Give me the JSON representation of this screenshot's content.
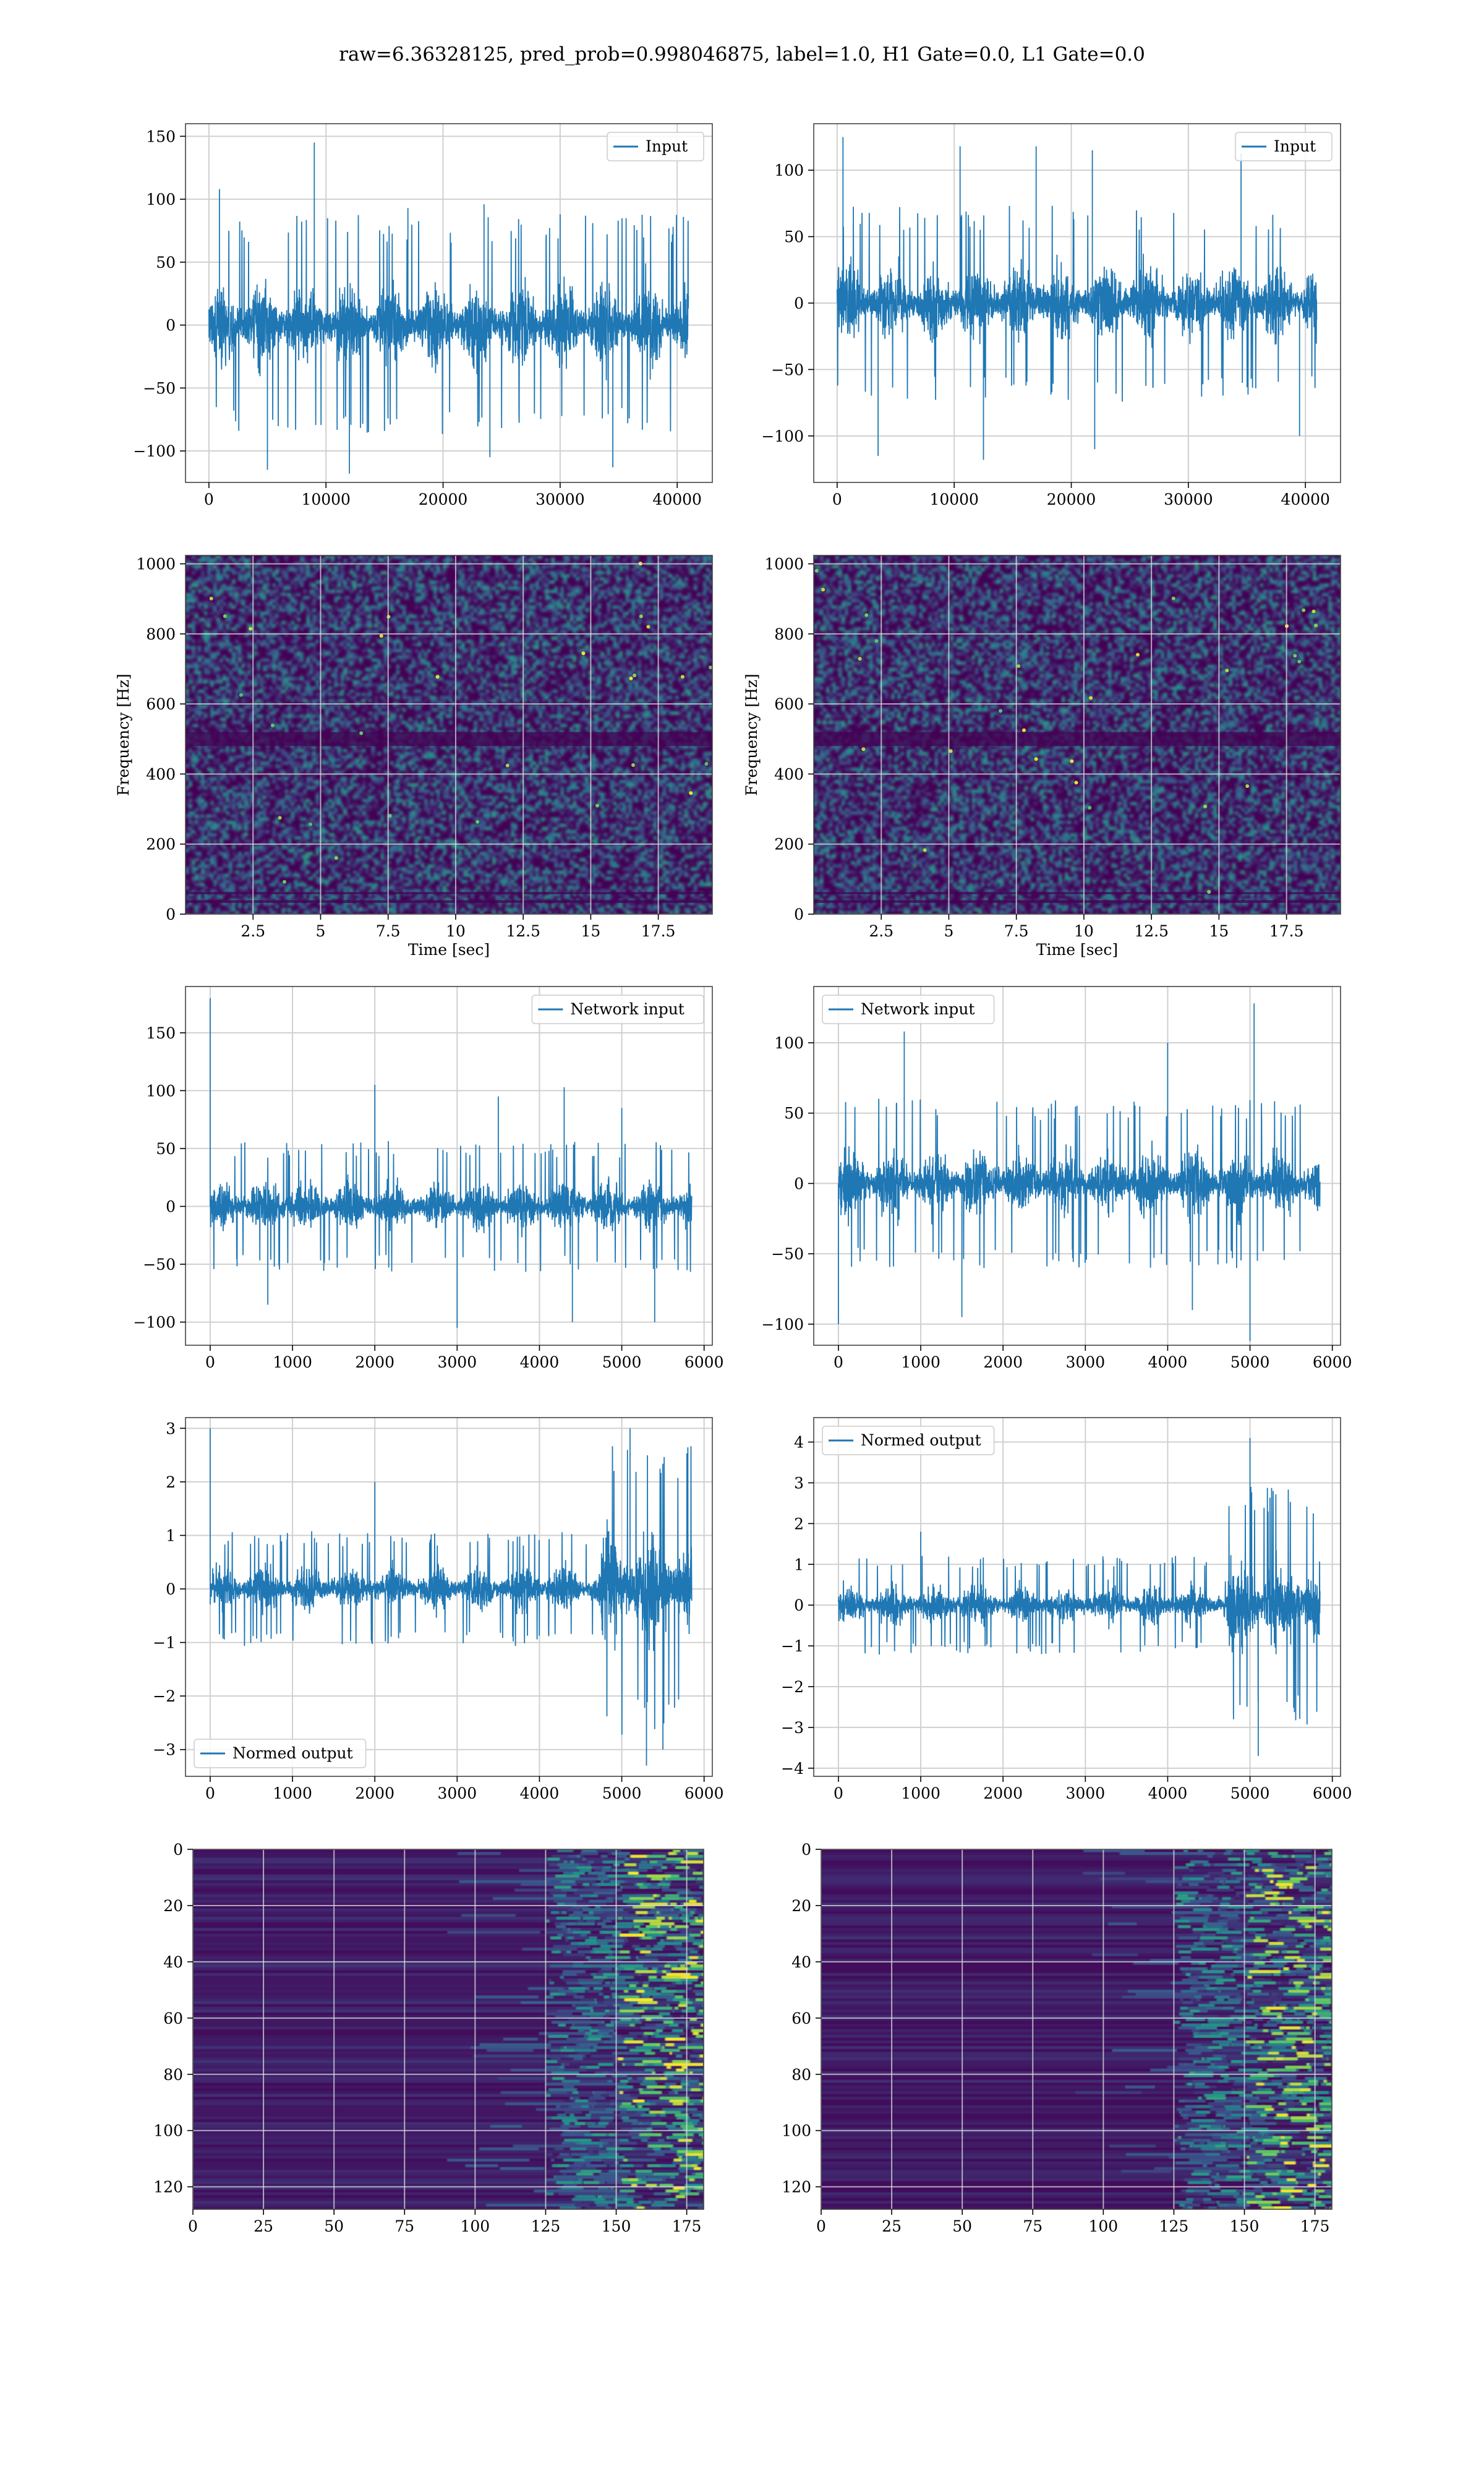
{
  "suptitle": "raw=6.36328125, pred_prob=0.998046875, label=1.0, H1 Gate=0.0, L1 Gate=0.0",
  "colors": {
    "line": "#1f77b4",
    "grid": "#d0d0d0",
    "axis": "#000000",
    "viridis_dark": "#440154",
    "viridis_mid": "#21918c",
    "viridis_bright": "#fde725"
  },
  "chart_data": [
    {
      "id": "row1-left",
      "type": "line",
      "legend": {
        "entries": [
          "Input"
        ],
        "loc": "upper right"
      },
      "grid": true,
      "xlim": [
        -2000,
        43000
      ],
      "ylim": [
        -125,
        160
      ],
      "xticks": [
        0,
        10000,
        20000,
        30000,
        40000
      ],
      "yticks": [
        -100,
        -50,
        0,
        50,
        100,
        150
      ],
      "series": [
        {
          "name": "Input",
          "x_range": [
            0,
            40960
          ],
          "envelope": [
            -65,
            65
          ],
          "peaks": [
            [
              900,
              108
            ],
            [
              9000,
              145
            ],
            [
              17000,
              93
            ],
            [
              23500,
              96
            ],
            [
              30000,
              88
            ],
            [
              5000,
              -115
            ],
            [
              12000,
              -118
            ],
            [
              24000,
              -105
            ],
            [
              34500,
              -113
            ]
          ]
        }
      ]
    },
    {
      "id": "row1-right",
      "type": "line",
      "legend": {
        "entries": [
          "Input"
        ],
        "loc": "upper right"
      },
      "grid": true,
      "xlim": [
        -2000,
        43000
      ],
      "ylim": [
        -135,
        135
      ],
      "xticks": [
        0,
        10000,
        20000,
        30000,
        40000
      ],
      "yticks": [
        -100,
        -50,
        0,
        50,
        100
      ],
      "series": [
        {
          "name": "Input",
          "x_range": [
            0,
            40960
          ],
          "envelope": [
            -55,
            55
          ],
          "peaks": [
            [
              500,
              125
            ],
            [
              10500,
              118
            ],
            [
              17000,
              118
            ],
            [
              21800,
              115
            ],
            [
              34500,
              113
            ],
            [
              3500,
              -115
            ],
            [
              12500,
              -118
            ],
            [
              22000,
              -110
            ],
            [
              39500,
              -100
            ]
          ]
        }
      ]
    },
    {
      "id": "row2-left",
      "type": "heatmap",
      "grid": true,
      "xlim": [
        0,
        19.5
      ],
      "ylim": [
        0,
        1024
      ],
      "xticks": [
        2.5,
        5.0,
        7.5,
        10.0,
        12.5,
        15.0,
        17.5
      ],
      "yticks": [
        0,
        200,
        400,
        600,
        800,
        1000
      ],
      "xlabel": "Time [sec]",
      "ylabel": "Frequency [Hz]",
      "colormap": "viridis"
    },
    {
      "id": "row2-right",
      "type": "heatmap",
      "grid": true,
      "xlim": [
        0,
        19.5
      ],
      "ylim": [
        0,
        1024
      ],
      "xticks": [
        2.5,
        5.0,
        7.5,
        10.0,
        12.5,
        15.0,
        17.5
      ],
      "yticks": [
        0,
        200,
        400,
        600,
        800,
        1000
      ],
      "xlabel": "Time [sec]",
      "ylabel": "Frequency [Hz]",
      "colormap": "viridis"
    },
    {
      "id": "row3-left",
      "type": "line",
      "legend": {
        "entries": [
          "Network input"
        ],
        "loc": "upper right"
      },
      "grid": true,
      "xlim": [
        -300,
        6100
      ],
      "ylim": [
        -120,
        190
      ],
      "xticks": [
        0,
        1000,
        2000,
        3000,
        4000,
        5000,
        6000
      ],
      "yticks": [
        -100,
        -50,
        0,
        50,
        100,
        150
      ],
      "series": [
        {
          "name": "Network input",
          "x_range": [
            0,
            5850
          ],
          "envelope": [
            -42,
            42
          ],
          "peaks": [
            [
              0,
              180
            ],
            [
              2000,
              105
            ],
            [
              3500,
              95
            ],
            [
              4300,
              103
            ],
            [
              5000,
              85
            ],
            [
              700,
              -85
            ],
            [
              3000,
              -105
            ],
            [
              4400,
              -100
            ],
            [
              5400,
              -100
            ]
          ]
        }
      ]
    },
    {
      "id": "row3-right",
      "type": "line",
      "legend": {
        "entries": [
          "Network input"
        ],
        "loc": "upper left"
      },
      "grid": true,
      "xlim": [
        -300,
        6100
      ],
      "ylim": [
        -115,
        140
      ],
      "xticks": [
        0,
        1000,
        2000,
        3000,
        4000,
        5000,
        6000
      ],
      "yticks": [
        -100,
        -50,
        0,
        50,
        100
      ],
      "series": [
        {
          "name": "Network input",
          "x_range": [
            0,
            5850
          ],
          "envelope": [
            -45,
            45
          ],
          "peaks": [
            [
              800,
              108
            ],
            [
              5050,
              128
            ],
            [
              4000,
              100
            ],
            [
              5000,
              -112
            ],
            [
              4300,
              -90
            ],
            [
              1500,
              -95
            ],
            [
              0,
              -100
            ]
          ]
        }
      ]
    },
    {
      "id": "row4-left",
      "type": "line",
      "legend": {
        "entries": [
          "Normed output"
        ],
        "loc": "lower left"
      },
      "grid": true,
      "xlim": [
        -300,
        6100
      ],
      "ylim": [
        -3.5,
        3.2
      ],
      "xticks": [
        0,
        1000,
        2000,
        3000,
        4000,
        5000,
        6000
      ],
      "yticks": [
        -3,
        -2,
        -1,
        0,
        1,
        2,
        3
      ],
      "series": [
        {
          "name": "Normed output",
          "x_range": [
            0,
            5850
          ],
          "envelope": [
            -0.8,
            0.8
          ],
          "burst": {
            "x_range": [
              4750,
              5850
            ],
            "envelope": [
              -2.2,
              2.4
            ]
          },
          "peaks": [
            [
              0,
              3.0
            ],
            [
              2000,
              2.0
            ],
            [
              5100,
              3.0
            ],
            [
              5300,
              -3.3
            ],
            [
              5500,
              -3.0
            ]
          ]
        }
      ]
    },
    {
      "id": "row4-right",
      "type": "line",
      "legend": {
        "entries": [
          "Normed output"
        ],
        "loc": "upper left"
      },
      "grid": true,
      "xlim": [
        -300,
        6100
      ],
      "ylim": [
        -4.2,
        4.6
      ],
      "xticks": [
        0,
        1000,
        2000,
        3000,
        4000,
        5000,
        6000
      ],
      "yticks": [
        -4,
        -3,
        -2,
        -1,
        0,
        1,
        2,
        3,
        4
      ],
      "series": [
        {
          "name": "Normed output",
          "x_range": [
            0,
            5850
          ],
          "envelope": [
            -0.9,
            0.9
          ],
          "burst": {
            "x_range": [
              4700,
              5850
            ],
            "envelope": [
              -2.2,
              2.6
            ]
          },
          "peaks": [
            [
              5000,
              4.1
            ],
            [
              5100,
              -3.7
            ],
            [
              1000,
              1.8
            ],
            [
              4800,
              -2.8
            ]
          ]
        }
      ]
    },
    {
      "id": "row5-left",
      "type": "heatmap",
      "grid": true,
      "xlim": [
        0,
        181
      ],
      "ylim": [
        128,
        0
      ],
      "xticks": [
        0,
        25,
        50,
        75,
        100,
        125,
        150,
        175
      ],
      "yticks": [
        0,
        20,
        40,
        60,
        80,
        100,
        120
      ],
      "colormap": "viridis",
      "active_region_x": [
        125,
        181
      ]
    },
    {
      "id": "row5-right",
      "type": "heatmap",
      "grid": true,
      "xlim": [
        0,
        181
      ],
      "ylim": [
        128,
        0
      ],
      "xticks": [
        0,
        25,
        50,
        75,
        100,
        125,
        150,
        175
      ],
      "yticks": [
        0,
        20,
        40,
        60,
        80,
        100,
        120
      ],
      "colormap": "viridis",
      "active_region_x": [
        125,
        181
      ]
    }
  ]
}
